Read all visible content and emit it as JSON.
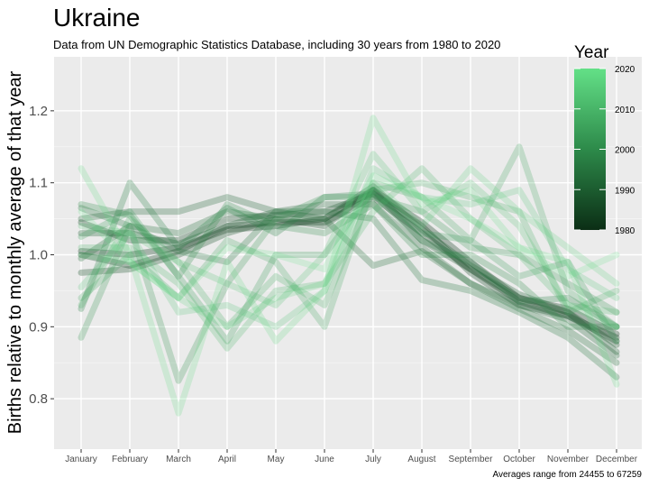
{
  "chart_data": {
    "type": "line",
    "title": "Ukraine",
    "subtitle": "Data from UN Demographic Statistics Database, including 30 years from 1980 to 2020",
    "caption": "Averages range from 24455 to 67259",
    "ylabel": "Births relative to monthly average of that year",
    "xlabel": "",
    "categories": [
      "January",
      "February",
      "March",
      "April",
      "May",
      "June",
      "July",
      "August",
      "September",
      "October",
      "November",
      "December"
    ],
    "ylim": [
      0.73,
      1.275
    ],
    "yticks": [
      0.8,
      0.9,
      1.0,
      1.1,
      1.2
    ],
    "ytick_labels": [
      "0.8",
      "0.9",
      "1.0",
      "1.1",
      "1.2"
    ],
    "grid": true,
    "legend": {
      "title": "Year",
      "placement": "right",
      "ticks": [
        1980,
        1990,
        2000,
        2010,
        2020
      ],
      "range": [
        1980,
        2020
      ],
      "color_low": "#0b2e15",
      "color_high": "#63e087"
    },
    "series": [
      {
        "year": 1982,
        "values": [
          1.005,
          1.0,
          1.01,
          1.035,
          1.04,
          1.05,
          1.09,
          1.045,
          0.99,
          0.94,
          0.925,
          0.89
        ]
      },
      {
        "year": 1984,
        "values": [
          1.0,
          0.985,
          1.005,
          1.04,
          1.045,
          1.045,
          1.08,
          1.03,
          0.98,
          0.935,
          0.915,
          0.885
        ]
      },
      {
        "year": 1986,
        "values": [
          1.045,
          1.02,
          1.02,
          1.05,
          1.055,
          1.06,
          1.085,
          1.04,
          0.975,
          0.93,
          0.915,
          0.88
        ]
      },
      {
        "year": 1988,
        "values": [
          0.975,
          0.98,
          1.0,
          1.03,
          1.05,
          1.04,
          1.09,
          1.02,
          0.98,
          0.94,
          0.92,
          0.875
        ]
      },
      {
        "year": 1990,
        "values": [
          1.03,
          1.03,
          1.015,
          1.04,
          1.06,
          1.05,
          1.095,
          1.035,
          0.985,
          0.945,
          0.92,
          0.865
        ]
      },
      {
        "year": 1992,
        "values": [
          1.05,
          1.06,
          1.06,
          1.08,
          1.06,
          1.07,
          1.07,
          1.01,
          0.96,
          0.93,
          0.91,
          0.86
        ]
      },
      {
        "year": 1994,
        "values": [
          0.995,
          1.04,
          1.03,
          1.06,
          1.05,
          1.05,
          0.985,
          1.005,
          0.96,
          0.925,
          0.895,
          0.85
        ]
      },
      {
        "year": 1996,
        "values": [
          1.065,
          1.04,
          1.005,
          0.99,
          1.06,
          1.06,
          1.05,
          0.965,
          0.95,
          0.92,
          0.885,
          0.83
        ]
      },
      {
        "year": 1998,
        "values": [
          0.925,
          1.1,
          1.01,
          1.065,
          1.03,
          1.08,
          1.085,
          1.02,
          0.99,
          0.935,
          0.94,
          0.9
        ]
      },
      {
        "year": 2000,
        "values": [
          1.07,
          1.055,
          0.97,
          1.07,
          1.04,
          1.03,
          1.07,
          1.0,
          1.0,
          0.96,
          0.9,
          0.9
        ]
      },
      {
        "year": 2002,
        "values": [
          0.885,
          1.04,
          0.825,
          0.96,
          1.05,
          1.08,
          1.08,
          1.06,
          1.01,
          1.0,
          0.96,
          0.92
        ]
      },
      {
        "year": 2004,
        "values": [
          1.025,
          1.06,
          0.97,
          0.88,
          1.0,
          1.0,
          1.09,
          1.03,
          1.02,
          0.97,
          0.99,
          0.88
        ]
      },
      {
        "year": 2006,
        "values": [
          0.94,
          1.0,
          0.94,
          1.02,
          0.99,
          0.9,
          1.1,
          1.08,
          1.02,
          1.15,
          0.95,
          0.9
        ]
      },
      {
        "year": 2008,
        "values": [
          0.93,
          1.05,
          0.99,
          0.9,
          0.97,
          0.93,
          1.09,
          1.1,
          1.08,
          1.06,
          0.92,
          0.95
        ]
      },
      {
        "year": 2010,
        "values": [
          1.01,
          1.01,
          0.96,
          0.87,
          0.95,
          0.96,
          1.06,
          1.12,
          1.05,
          1.0,
          0.93,
          0.92
        ]
      },
      {
        "year": 2012,
        "values": [
          1.04,
          1.03,
          0.99,
          0.96,
          0.93,
          1.0,
          1.14,
          1.06,
          1.1,
          1.04,
          0.93,
          0.9
        ]
      },
      {
        "year": 2014,
        "values": [
          0.955,
          1.03,
          0.92,
          0.93,
          0.9,
          0.95,
          1.12,
          1.08,
          1.07,
          1.09,
          0.98,
          0.94
        ]
      },
      {
        "year": 2016,
        "values": [
          1.0,
          0.99,
          0.94,
          0.9,
          0.94,
          0.96,
          1.1,
          1.04,
          1.12,
          1.06,
          1.01,
          0.96
        ]
      },
      {
        "year": 2018,
        "values": [
          1.12,
          1.0,
          0.78,
          0.99,
          0.88,
          0.95,
          1.19,
          1.07,
          1.09,
          1.01,
          0.99,
          0.82
        ]
      },
      {
        "year": 2020,
        "values": [
          1.06,
          0.99,
          0.94,
          1.01,
          1.0,
          0.98,
          1.11,
          1.08,
          1.05,
          1.01,
          0.97,
          1.0
        ]
      }
    ]
  }
}
